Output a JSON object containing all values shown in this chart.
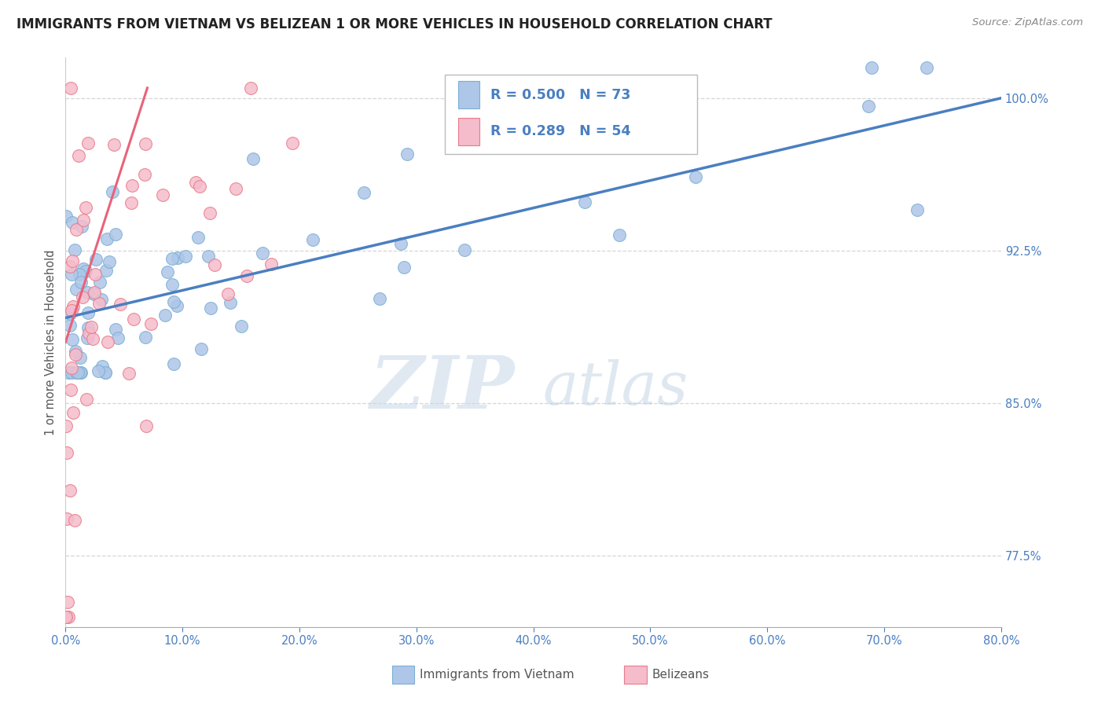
{
  "title": "IMMIGRANTS FROM VIETNAM VS BELIZEAN 1 OR MORE VEHICLES IN HOUSEHOLD CORRELATION CHART",
  "source": "Source: ZipAtlas.com",
  "ylabel_label": "1 or more Vehicles in Household",
  "legend1_r": "R = 0.500",
  "legend1_n": "N = 73",
  "legend2_r": "R = 0.289",
  "legend2_n": "N = 54",
  "legend1_series": "Immigrants from Vietnam",
  "legend2_series": "Belizeans",
  "vietnam_color": "#aec6e8",
  "vietnam_edge": "#7bafd4",
  "belize_color": "#f5bccb",
  "belize_edge": "#e87a8a",
  "trendline_vietnam_color": "#4a7fc1",
  "trendline_belize_color": "#e8637a",
  "watermark_zip": "ZIP",
  "watermark_atlas": "atlas",
  "watermark_zip_color": "#c8d8e8",
  "watermark_atlas_color": "#b8cde0",
  "background": "#ffffff",
  "grid_color": "#cccccc",
  "tick_color": "#4a7fc1",
  "title_color": "#222222",
  "source_color": "#888888",
  "ylabel_color": "#555555",
  "xlim": [
    0.0,
    80.0
  ],
  "ylim": [
    74.0,
    102.0
  ],
  "yticks": [
    77.5,
    85.0,
    92.5,
    100.0
  ],
  "ytick_labels": [
    "77.5%",
    "85.0%",
    "92.5%",
    "100.0%"
  ],
  "xticks": [
    0,
    10,
    20,
    30,
    40,
    50,
    60,
    70,
    80
  ],
  "xtick_labels": [
    "0.0%",
    "10.0%",
    "20.0%",
    "30.0%",
    "40.0%",
    "50.0%",
    "60.0%",
    "70.0%",
    "80.0%"
  ]
}
